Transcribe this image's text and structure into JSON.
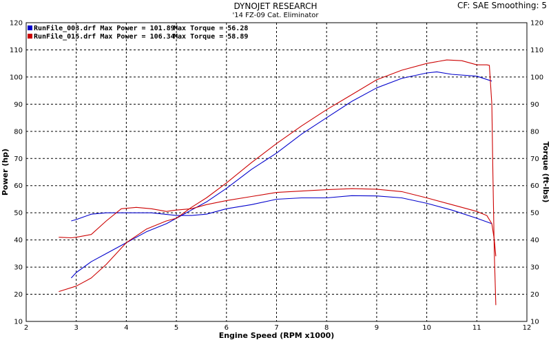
{
  "header": {
    "title": "DYNOJET RESEARCH",
    "subtitle": "'14 FZ-09 Cat. Eliminator",
    "settings": "CF: SAE  Smoothing: 5"
  },
  "chart_data": {
    "type": "line",
    "xlabel": "Engine Speed (RPM x1000)",
    "ylabel_left": "Power (hp)",
    "ylabel_right": "Torque (ft-lbs)",
    "xlim": [
      2,
      12
    ],
    "ylim": [
      10,
      120
    ],
    "xticks": [
      2,
      3,
      4,
      5,
      6,
      7,
      8,
      9,
      10,
      11,
      12
    ],
    "yticks": [
      10,
      20,
      30,
      40,
      50,
      60,
      70,
      80,
      90,
      100,
      110,
      120
    ],
    "grid": true,
    "legend_position": "top-left",
    "series": [
      {
        "name": "RunFile_003.drf",
        "max_power_label": "Max Power = 101.89",
        "max_torque_label": "Max Torque = 56.28",
        "color": "#0000cc",
        "power": {
          "x": [
            2.9,
            3.0,
            3.3,
            3.6,
            4.0,
            4.4,
            4.8,
            5.0,
            5.3,
            5.6,
            6.0,
            6.5,
            7.0,
            7.5,
            8.0,
            8.5,
            9.0,
            9.5,
            10.0,
            10.2,
            10.5,
            11.0,
            11.3
          ],
          "y": [
            26,
            28,
            32,
            35,
            39,
            43,
            46,
            48,
            51,
            54,
            59,
            66,
            72,
            79,
            85,
            91,
            96,
            99.5,
            101.5,
            101.9,
            101,
            100.3,
            98.5
          ]
        },
        "torque": {
          "x": [
            2.9,
            3.0,
            3.3,
            3.6,
            4.0,
            4.5,
            5.0,
            5.3,
            5.6,
            6.0,
            6.5,
            7.0,
            7.5,
            8.0,
            8.5,
            9.0,
            9.5,
            10.0,
            10.5,
            11.0,
            11.3
          ],
          "y": [
            47,
            47.5,
            49.5,
            50,
            50,
            50,
            49,
            49,
            49.5,
            51.5,
            53,
            55,
            55.5,
            55.5,
            56.3,
            56.2,
            55.5,
            53.5,
            51,
            48,
            46
          ]
        }
      },
      {
        "name": "RunFile_015.drf",
        "max_power_label": "Max Power = 106.34",
        "max_torque_label": "Max Torque = 58.89",
        "color": "#cc0000",
        "power": {
          "x": [
            2.65,
            3.0,
            3.3,
            3.6,
            4.0,
            4.4,
            4.8,
            5.0,
            5.3,
            5.6,
            6.0,
            6.5,
            7.0,
            7.5,
            8.0,
            8.5,
            9.0,
            9.5,
            10.0,
            10.4,
            10.7,
            11.0,
            11.2,
            11.25,
            11.3,
            11.32,
            11.35,
            11.38
          ],
          "y": [
            21,
            23,
            26,
            31,
            39,
            44,
            47,
            48,
            52,
            55.5,
            61,
            68.5,
            75.5,
            82,
            88,
            93.5,
            99,
            102.5,
            105,
            106.3,
            106,
            104.5,
            104.5,
            104.3,
            90,
            65,
            35,
            16
          ]
        },
        "torque": {
          "x": [
            2.65,
            2.9,
            3.0,
            3.3,
            3.6,
            3.9,
            4.2,
            4.5,
            4.8,
            5.0,
            5.3,
            5.6,
            6.0,
            6.5,
            7.0,
            7.5,
            8.0,
            8.5,
            9.0,
            9.5,
            10.0,
            10.5,
            11.0,
            11.2,
            11.3,
            11.35,
            11.38
          ],
          "y": [
            41,
            40.8,
            41,
            42,
            47,
            51.5,
            52,
            51.5,
            50.5,
            51,
            51.5,
            53,
            54.5,
            56,
            57.5,
            58,
            58.5,
            58.9,
            58.7,
            57.8,
            55.5,
            53,
            50.5,
            49,
            46,
            40,
            34
          ]
        }
      }
    ]
  }
}
